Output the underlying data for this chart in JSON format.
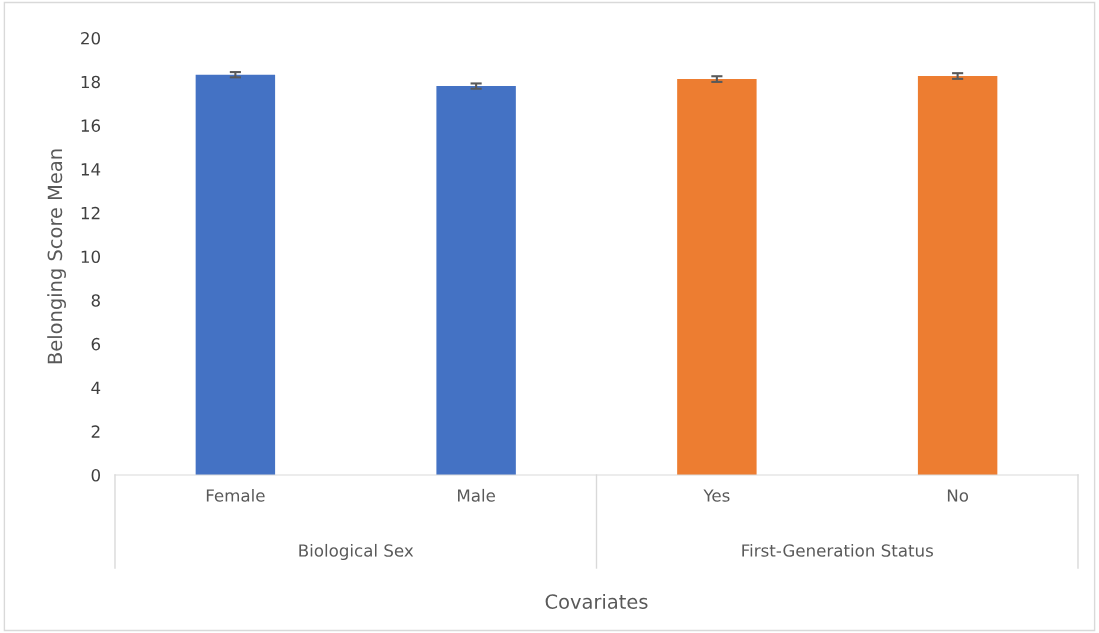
{
  "chart_data": {
    "type": "bar",
    "xlabel": "Covariates",
    "ylabel": "Belonging Score Mean",
    "categories": [
      "Female",
      "Male",
      "Yes",
      "No"
    ],
    "values": [
      18.32,
      17.8,
      18.12,
      18.26
    ],
    "errors": [
      0.12,
      0.12,
      0.13,
      0.13
    ],
    "colors": [
      "#4472c4",
      "#4472c4",
      "#ed7d31",
      "#ed7d31"
    ],
    "annotations": [
      "Biological Sex",
      "First-Generation Status"
    ],
    "ylim": [
      0,
      20
    ],
    "yticks": [
      0,
      2,
      4,
      6,
      8,
      10,
      12,
      14,
      16,
      18,
      20
    ],
    "grid": false,
    "legend": false
  }
}
